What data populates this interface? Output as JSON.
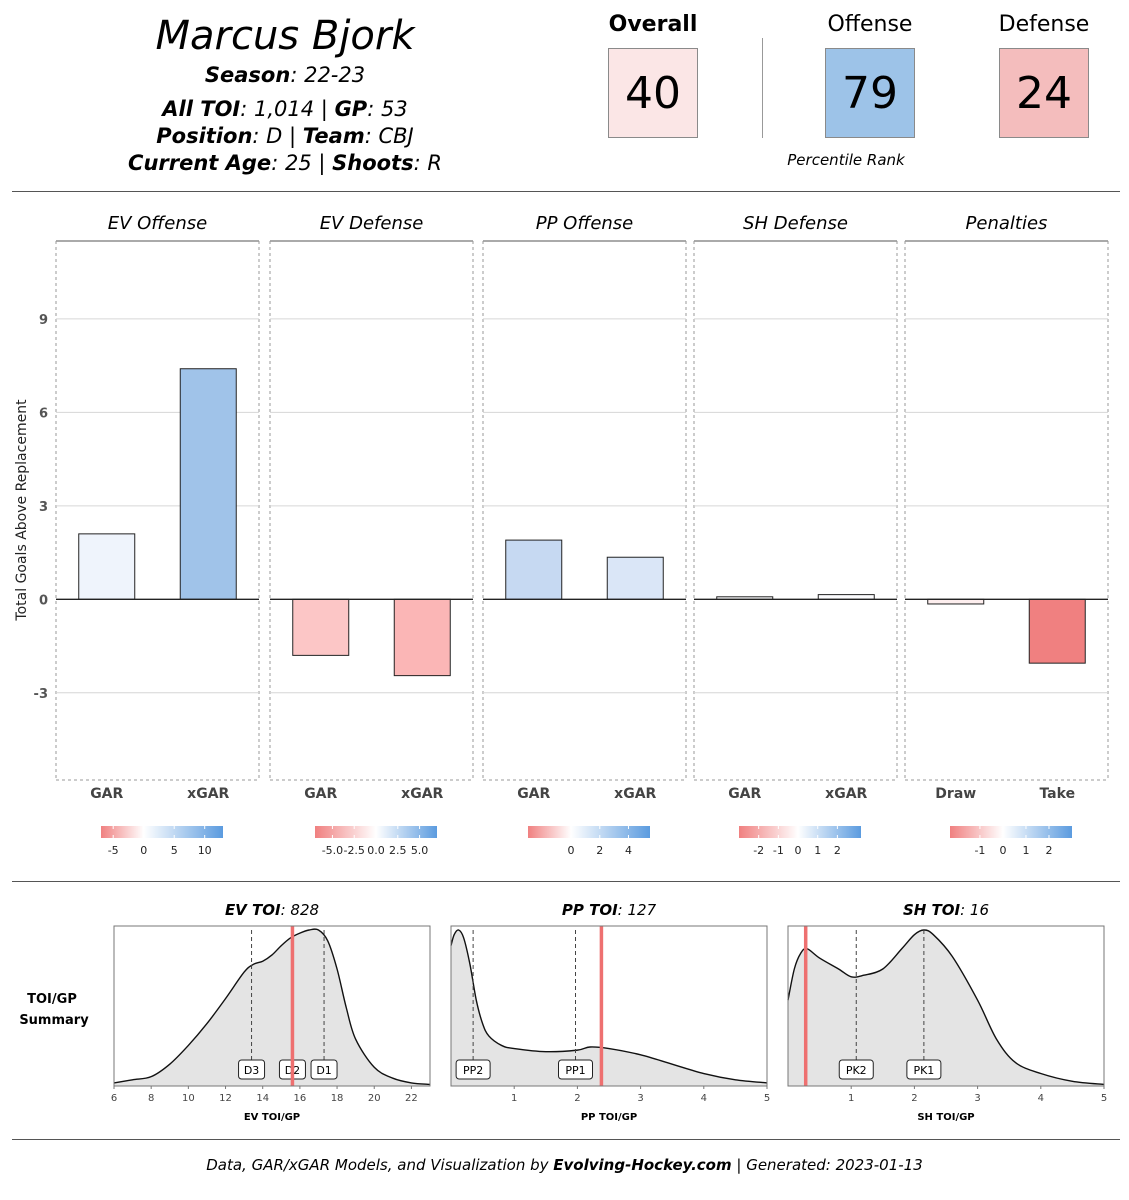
{
  "player": {
    "name": "Marcus Bjork",
    "season_label": "Season",
    "season": "22-23",
    "toi_label": "All TOI",
    "toi": "1,014",
    "gp_label": "GP",
    "gp": "53",
    "position_label": "Position",
    "position": "D",
    "team_label": "Team",
    "team": "CBJ",
    "age_label": "Current Age",
    "age": "25",
    "shoots_label": "Shoots",
    "shoots": "R"
  },
  "ranks": {
    "overall": {
      "label": "Overall",
      "value": "40",
      "color": "#fbe6e6"
    },
    "offense": {
      "label": "Offense",
      "value": "79",
      "color": "#9dc3e8"
    },
    "defense": {
      "label": "Defense",
      "value": "24",
      "color": "#f4bdbd"
    },
    "caption": "Percentile Rank"
  },
  "chart_data": [
    {
      "type": "bar",
      "ylabel": "Total Goals Above Replacement",
      "ylim": [
        -5.8,
        11.5
      ],
      "yticks": [
        -3,
        0,
        3,
        6,
        9
      ],
      "facets": [
        {
          "title": "EV Offense",
          "categories": [
            "GAR",
            "xGAR"
          ],
          "values": [
            2.1,
            7.4
          ],
          "colors": [
            "#eff4fc",
            "#a0c3e9"
          ],
          "scale": {
            "ticks": [
              "-5",
              "0",
              "5",
              "10"
            ],
            "tick_pos": [
              -5,
              0,
              5,
              10
            ],
            "range": [
              -7,
              13
            ]
          }
        },
        {
          "title": "EV Defense",
          "categories": [
            "GAR",
            "xGAR"
          ],
          "values": [
            -1.8,
            -2.45
          ],
          "colors": [
            "#fcc6c6",
            "#fbb6b6"
          ],
          "scale": {
            "ticks": [
              "-5.0",
              "-2.5",
              "0.0",
              "2.5",
              "5.0"
            ],
            "tick_pos": [
              -5,
              -2.5,
              0,
              2.5,
              5
            ],
            "range": [
              -7,
              7
            ]
          }
        },
        {
          "title": "PP Offense",
          "categories": [
            "GAR",
            "xGAR"
          ],
          "values": [
            1.9,
            1.35
          ],
          "colors": [
            "#c6d9f2",
            "#dae6f7"
          ],
          "scale": {
            "ticks": [
              "0",
              "2",
              "4"
            ],
            "tick_pos": [
              0,
              2,
              4
            ],
            "range": [
              -3,
              5.5
            ]
          }
        },
        {
          "title": "SH Defense",
          "categories": [
            "GAR",
            "xGAR"
          ],
          "values": [
            0.08,
            0.15
          ],
          "colors": [
            "#fdfdfe",
            "#fcfcfe"
          ],
          "scale": {
            "ticks": [
              "-2",
              "-1",
              "0",
              "1",
              "2"
            ],
            "tick_pos": [
              -2,
              -1,
              0,
              1,
              2
            ],
            "range": [
              -3,
              3.2
            ]
          }
        },
        {
          "title": "Penalties",
          "categories": [
            "Draw",
            "Take"
          ],
          "values": [
            -0.15,
            -2.05
          ],
          "colors": [
            "#fdeeee",
            "#f08080"
          ],
          "scale": {
            "ticks": [
              "-1",
              "0",
              "1",
              "2"
            ],
            "tick_pos": [
              -1,
              0,
              1,
              2
            ],
            "range": [
              -2.3,
              3
            ]
          }
        }
      ]
    },
    {
      "type": "area",
      "row_label": "TOI/GP Summary",
      "panels": [
        {
          "title_label": "EV TOI",
          "title_value": "828",
          "xlabel": "EV TOI/GP",
          "xlim": [
            6,
            23
          ],
          "xticks": [
            6,
            8,
            10,
            12,
            14,
            16,
            18,
            20,
            22
          ],
          "player_value": 15.6,
          "markers": [
            {
              "label": "D3",
              "x": 13.4
            },
            {
              "label": "D2",
              "x": 15.6
            },
            {
              "label": "D1",
              "x": 17.3
            }
          ],
          "density": {
            "x": [
              6,
              7,
              8,
              9,
              10,
              11,
              12,
              13,
              13.5,
              14,
              14.5,
              15,
              15.5,
              16,
              16.5,
              17,
              17.5,
              18,
              18.5,
              19,
              20,
              21,
              22,
              23
            ],
            "y": [
              0.02,
              0.04,
              0.06,
              0.14,
              0.26,
              0.4,
              0.56,
              0.73,
              0.78,
              0.8,
              0.84,
              0.9,
              0.95,
              0.98,
              1.0,
              1.0,
              0.93,
              0.75,
              0.5,
              0.3,
              0.12,
              0.05,
              0.02,
              0.01
            ]
          }
        },
        {
          "title_label": "PP TOI",
          "title_value": "127",
          "xlabel": "PP TOI/GP",
          "xlim": [
            0,
            5
          ],
          "xticks": [
            1,
            2,
            3,
            4,
            5
          ],
          "player_value": 2.38,
          "markers": [
            {
              "label": "PP2",
              "x": 0.35
            },
            {
              "label": "PP1",
              "x": 1.97
            }
          ],
          "density": {
            "x": [
              0,
              0.05,
              0.12,
              0.2,
              0.3,
              0.4,
              0.5,
              0.6,
              0.8,
              1.0,
              1.5,
              2.0,
              2.2,
              2.5,
              3.0,
              3.5,
              4.0,
              4.5,
              5.0
            ],
            "y": [
              0.9,
              0.97,
              1.0,
              0.95,
              0.78,
              0.55,
              0.4,
              0.32,
              0.26,
              0.24,
              0.22,
              0.23,
              0.25,
              0.24,
              0.2,
              0.14,
              0.08,
              0.04,
              0.02
            ]
          }
        },
        {
          "title_label": "SH TOI",
          "title_value": "16",
          "xlabel": "SH TOI/GP",
          "xlim": [
            0,
            5
          ],
          "xticks": [
            1,
            2,
            3,
            4,
            5
          ],
          "player_value": 0.28,
          "markers": [
            {
              "label": "PK2",
              "x": 1.08
            },
            {
              "label": "PK1",
              "x": 2.15
            }
          ],
          "density": {
            "x": [
              0,
              0.1,
              0.2,
              0.3,
              0.5,
              0.8,
              1.0,
              1.2,
              1.5,
              1.8,
              2.0,
              2.15,
              2.3,
              2.6,
              3.0,
              3.3,
              3.6,
              4.0,
              4.5,
              5.0
            ],
            "y": [
              0.55,
              0.75,
              0.85,
              0.88,
              0.82,
              0.75,
              0.7,
              0.71,
              0.75,
              0.88,
              0.97,
              1.0,
              0.97,
              0.83,
              0.55,
              0.3,
              0.15,
              0.08,
              0.03,
              0.01
            ]
          }
        }
      ]
    }
  ],
  "footer": {
    "prefix": "Data, GAR/xGAR Models, and Visualization by ",
    "brand": "Evolving-Hockey.com",
    "suffix": " | Generated: 2023-01-13"
  }
}
